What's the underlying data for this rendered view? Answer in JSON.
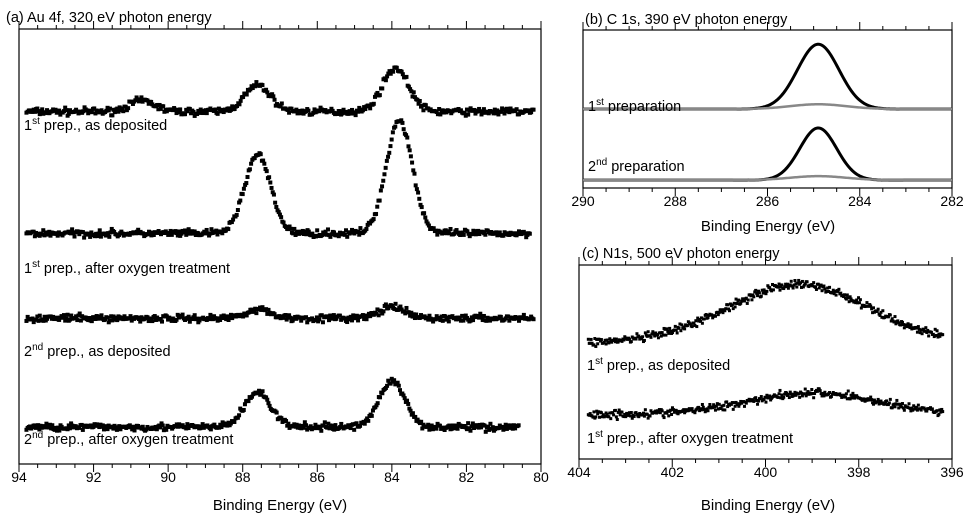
{
  "chart_data": [
    {
      "id": "a",
      "type": "scatter",
      "title": "(a) Au 4f, 320 eV photon energy",
      "xlabel": "Binding Energy (eV)",
      "ylabel": "",
      "xlim": [
        94,
        80
      ],
      "x_reversed": true,
      "xticks": [
        94,
        92,
        90,
        88,
        86,
        84,
        82,
        80
      ],
      "grid": false,
      "series": [
        {
          "annotation": "1st prep., as deposited",
          "x_range": [
            93.8,
            80.2
          ],
          "baseline": 0.81,
          "peaks": [
            {
              "x": 87.6,
              "h": 0.06
            },
            {
              "x": 83.9,
              "h": 0.1
            },
            {
              "x": 90.7,
              "h": 0.025
            }
          ]
        },
        {
          "annotation": "1st prep., after oxygen treatment",
          "x_range": [
            93.8,
            80.3
          ],
          "baseline": 0.53,
          "peaks": [
            {
              "x": 87.6,
              "h": 0.18
            },
            {
              "x": 83.8,
              "h": 0.26
            }
          ]
        },
        {
          "annotation": "2nd prep., as deposited",
          "x_range": [
            93.8,
            80.2
          ],
          "baseline": 0.335,
          "peaks": [
            {
              "x": 87.6,
              "h": 0.02
            },
            {
              "x": 84.0,
              "h": 0.025
            }
          ]
        },
        {
          "annotation": "2nd prep., after oxygen treatment",
          "x_range": [
            93.8,
            80.6
          ],
          "baseline": 0.085,
          "peaks": [
            {
              "x": 87.6,
              "h": 0.08
            },
            {
              "x": 84.0,
              "h": 0.105
            }
          ]
        }
      ]
    },
    {
      "id": "b",
      "type": "line",
      "title": "(b) C 1s, 390 eV photon energy",
      "xlabel": "Binding Energy (eV)",
      "ylabel": "",
      "xlim": [
        290,
        282
      ],
      "x_reversed": true,
      "xticks": [
        290,
        288,
        286,
        284,
        282
      ],
      "grid": false,
      "series": [
        {
          "annotation": "1st preparation",
          "color": "#000000",
          "baseline": 0.5,
          "peak_x": 284.9,
          "peak_h": 0.41,
          "width": 0.45
        },
        {
          "annotation": "",
          "color": "#888888",
          "baseline": 0.5,
          "peak_x": 284.9,
          "peak_h": 0.03,
          "width": 0.6
        },
        {
          "annotation": "2nd preparation",
          "color": "#000000",
          "baseline": 0.05,
          "peak_x": 284.9,
          "peak_h": 0.33,
          "width": 0.4
        },
        {
          "annotation": "",
          "color": "#888888",
          "baseline": 0.05,
          "peak_x": 284.9,
          "peak_h": 0.025,
          "width": 0.6
        }
      ]
    },
    {
      "id": "c",
      "type": "scatter",
      "title": "(c) N1s, 500 eV photon energy",
      "xlabel": "Binding Energy (eV)",
      "ylabel": "",
      "xlim": [
        404,
        396
      ],
      "x_reversed": true,
      "xticks": [
        404,
        402,
        400,
        398,
        396
      ],
      "grid": false,
      "series": [
        {
          "annotation": "1st prep., as deposited",
          "x_range": [
            403.8,
            396.2
          ],
          "baseline": 0.6,
          "peaks": [
            {
              "x": 399.3,
              "h": 0.3,
              "w": 1.5
            }
          ]
        },
        {
          "annotation": "1st prep., after oxygen treatment",
          "x_range": [
            403.8,
            396.2
          ],
          "baseline": 0.23,
          "peaks": [
            {
              "x": 399.0,
              "h": 0.11,
              "w": 1.4
            }
          ]
        }
      ]
    }
  ]
}
